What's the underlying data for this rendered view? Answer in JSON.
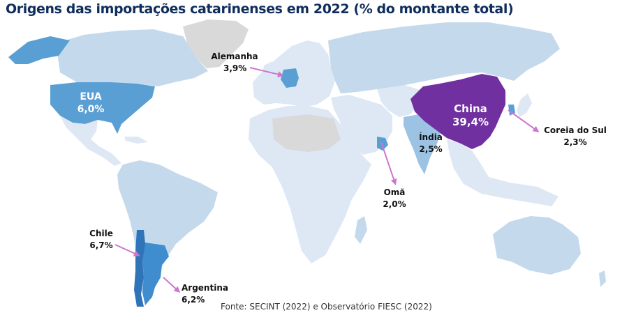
{
  "title": "Origens das importações catarinenses em 2022 (% do montante total)",
  "source": "Fonte: SECINT (2022) e Observatório FIESC (2022)",
  "colors": {
    "land_light": "#c5d9ec",
    "land_faint": "#dde8f4",
    "no_data": "#d9d9d9",
    "highlight_medium": "#5a9fd4",
    "highlight_strong": "#7030a0",
    "arrow": "#cc77cc",
    "title": "#0f2d5c"
  },
  "countries": [
    {
      "name": "China",
      "value": "39,4%"
    },
    {
      "name": "Chile",
      "value": "6,7%"
    },
    {
      "name": "Argentina",
      "value": "6,2%"
    },
    {
      "name": "EUA",
      "value": "6,0%"
    },
    {
      "name": "Alemanha",
      "value": "3,9%"
    },
    {
      "name": "Índia",
      "value": "2,5%"
    },
    {
      "name": "Coreia do Sul",
      "value": "2,3%"
    },
    {
      "name": "Omã",
      "value": "2,0%"
    }
  ]
}
